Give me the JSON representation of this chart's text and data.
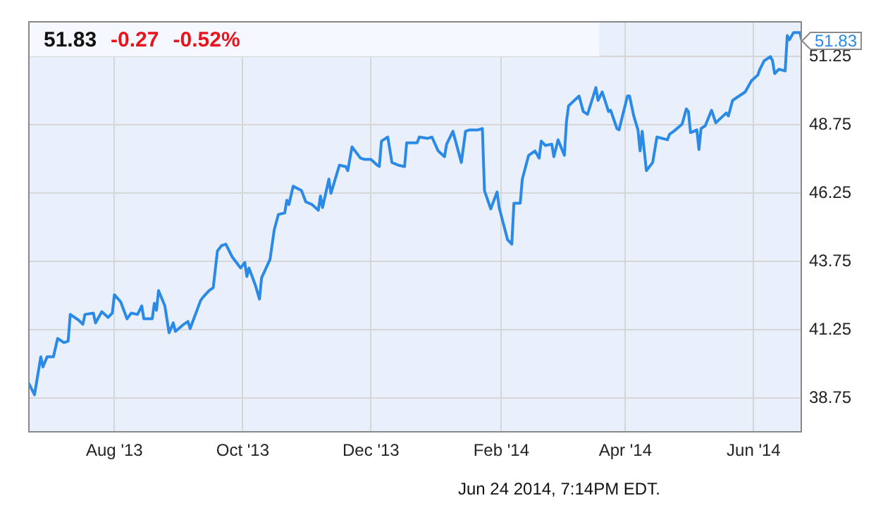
{
  "chart_data": {
    "type": "line",
    "x": [
      "2013-06-21",
      "2013-06-24",
      "2013-06-27",
      "2013-06-28",
      "2013-06-30",
      "2013-07-03",
      "2013-07-05",
      "2013-07-08",
      "2013-07-10",
      "2013-07-11",
      "2013-07-15",
      "2013-07-17",
      "2013-07-18",
      "2013-07-22",
      "2013-07-23",
      "2013-07-26",
      "2013-07-29",
      "2013-07-31",
      "2013-08-01",
      "2013-08-04",
      "2013-08-07",
      "2013-08-09",
      "2013-08-12",
      "2013-08-14",
      "2013-08-15",
      "2013-08-19",
      "2013-08-20",
      "2013-08-21",
      "2013-08-22",
      "2013-08-25",
      "2013-08-27",
      "2013-08-29",
      "2013-08-30",
      "2013-09-03",
      "2013-09-05",
      "2013-09-06",
      "2013-09-11",
      "2013-09-12",
      "2013-09-15",
      "2013-09-17",
      "2013-09-19",
      "2013-09-21",
      "2013-09-23",
      "2013-09-26",
      "2013-09-29",
      "2013-09-30",
      "2013-10-02",
      "2013-10-03",
      "2013-10-04",
      "2013-10-07",
      "2013-10-09",
      "2013-10-10",
      "2013-10-14",
      "2013-10-16",
      "2013-10-18",
      "2013-10-21",
      "2013-10-22",
      "2013-10-23",
      "2013-10-25",
      "2013-10-29",
      "2013-10-31",
      "2013-11-03",
      "2013-11-06",
      "2013-11-07",
      "2013-11-08",
      "2013-11-11",
      "2013-11-12",
      "2013-11-16",
      "2013-11-19",
      "2013-11-20",
      "2013-11-22",
      "2013-11-26",
      "2013-11-28",
      "2013-12-01",
      "2013-12-04",
      "2013-12-05",
      "2013-12-06",
      "2013-12-09",
      "2013-12-11",
      "2013-12-14",
      "2013-12-17",
      "2013-12-18",
      "2013-12-23",
      "2013-12-24",
      "2013-12-28",
      "2013-12-30",
      "2014-01-02",
      "2014-01-05",
      "2014-01-06",
      "2014-01-09",
      "2014-01-11",
      "2014-01-13",
      "2014-01-15",
      "2014-01-17",
      "2014-01-21",
      "2014-01-23",
      "2014-01-24",
      "2014-01-27",
      "2014-01-28",
      "2014-01-30",
      "2014-01-31",
      "2014-02-04",
      "2014-02-06",
      "2014-02-07",
      "2014-02-10",
      "2014-02-11",
      "2014-02-14",
      "2014-02-17",
      "2014-02-19",
      "2014-02-20",
      "2014-02-22",
      "2014-02-25",
      "2014-02-26",
      "2014-02-28",
      "2014-03-03",
      "2014-03-04",
      "2014-03-05",
      "2014-03-10",
      "2014-03-12",
      "2014-03-14",
      "2014-03-18",
      "2014-03-19",
      "2014-03-21",
      "2014-03-24",
      "2014-03-25",
      "2014-03-28",
      "2014-03-29",
      "2014-04-02",
      "2014-04-03",
      "2014-04-05",
      "2014-04-07",
      "2014-04-08",
      "2014-04-09",
      "2014-04-11",
      "2014-04-14",
      "2014-04-16",
      "2014-04-21",
      "2014-04-22",
      "2014-04-24",
      "2014-04-28",
      "2014-04-30",
      "2014-05-01",
      "2014-05-02",
      "2014-05-05",
      "2014-05-06",
      "2014-05-07",
      "2014-05-09",
      "2014-05-12",
      "2014-05-14",
      "2014-05-19",
      "2014-05-20",
      "2014-05-22",
      "2014-05-28",
      "2014-05-31",
      "2014-06-03",
      "2014-06-04",
      "2014-06-06",
      "2014-06-09",
      "2014-06-10",
      "2014-06-11",
      "2014-06-13",
      "2014-06-16",
      "2014-06-17",
      "2014-06-18",
      "2014-06-20",
      "2014-06-23",
      "2014-06-24"
    ],
    "series": [
      {
        "color": "#2a8ae6",
        "values": [
          39.34,
          38.88,
          40.27,
          39.9,
          40.27,
          40.27,
          40.94,
          40.79,
          40.84,
          41.82,
          41.61,
          41.46,
          41.82,
          41.87,
          41.51,
          41.92,
          41.71,
          41.87,
          42.54,
          42.28,
          41.66,
          41.87,
          41.82,
          42.13,
          41.66,
          41.66,
          42.23,
          41.97,
          42.69,
          42.13,
          41.15,
          41.51,
          41.2,
          41.46,
          41.56,
          41.3,
          42.33,
          42.44,
          42.69,
          42.8,
          44.14,
          44.34,
          44.39,
          43.93,
          43.62,
          43.52,
          43.72,
          43.21,
          43.52,
          42.9,
          42.38,
          43.16,
          43.83,
          44.91,
          45.48,
          45.53,
          46.0,
          45.84,
          46.51,
          46.35,
          45.94,
          45.84,
          45.63,
          46.15,
          45.73,
          46.77,
          46.25,
          47.28,
          47.23,
          47.08,
          47.95,
          47.54,
          47.49,
          47.49,
          47.28,
          47.23,
          48.16,
          48.31,
          47.38,
          47.28,
          47.23,
          48.1,
          48.1,
          48.31,
          48.26,
          48.31,
          47.8,
          47.59,
          48.05,
          48.52,
          47.95,
          47.38,
          48.52,
          48.57,
          48.57,
          48.62,
          46.35,
          45.68,
          45.89,
          46.3,
          45.73,
          44.55,
          44.39,
          45.89,
          45.89,
          46.77,
          47.64,
          47.8,
          47.54,
          48.16,
          48.0,
          48.05,
          47.59,
          48.21,
          47.64,
          48.88,
          49.45,
          49.81,
          49.24,
          49.14,
          50.12,
          49.65,
          49.96,
          49.24,
          49.29,
          48.62,
          48.57,
          49.81,
          49.81,
          49.08,
          48.57,
          47.8,
          48.52,
          47.08,
          47.38,
          48.31,
          48.21,
          48.41,
          48.52,
          48.78,
          49.34,
          49.24,
          48.47,
          48.57,
          47.85,
          48.62,
          48.72,
          49.29,
          48.83,
          49.19,
          49.08,
          49.65,
          49.96,
          50.37,
          50.58,
          50.79,
          51.1,
          51.25,
          51.1,
          50.63,
          50.79,
          50.73,
          52.02,
          51.87,
          52.13,
          52.13,
          51.83
        ]
      }
    ],
    "xlim": [
      "2013-06-21",
      "2014-06-24"
    ],
    "xticks": [
      {
        "value": "2013-08-01",
        "label": "Aug '13"
      },
      {
        "value": "2013-10-01",
        "label": "Oct '13"
      },
      {
        "value": "2013-12-01",
        "label": "Dec '13"
      },
      {
        "value": "2014-02-01",
        "label": "Feb '14"
      },
      {
        "value": "2014-04-01",
        "label": "Apr '14"
      },
      {
        "value": "2014-06-01",
        "label": "Jun '14"
      }
    ],
    "ylim": [
      37.5,
      52.55
    ],
    "yticks": [
      38.75,
      41.25,
      43.75,
      46.25,
      48.75,
      51.25
    ],
    "grid": true,
    "annotations": [
      "51.83",
      "-0.27",
      "-0.52%",
      {
        "text": "51.83",
        "x": "2014-06-24",
        "y": 51.83
      },
      "Jun 24 2014, 7:14PM EDT."
    ]
  }
}
